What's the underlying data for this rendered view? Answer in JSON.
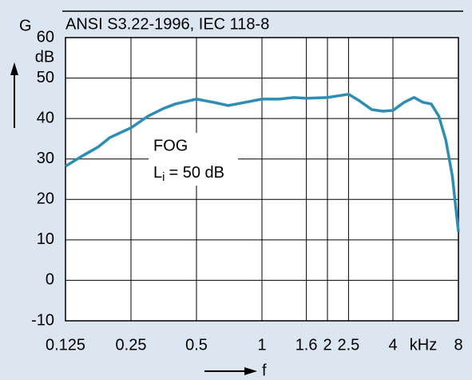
{
  "chart_data": {
    "type": "line",
    "title": "ANSI S3.22-1996, IEC 118-8",
    "y_label": "G",
    "y_unit": "dB",
    "x_label": "f",
    "x_unit": "kHz",
    "annotation": [
      "FOG",
      "L",
      "i",
      "= 50 dB"
    ],
    "xscale": "log",
    "grid": true,
    "xlim": [
      0.125,
      8
    ],
    "xticks": [
      0.125,
      0.25,
      0.5,
      1,
      1.6,
      2,
      2.5,
      4,
      8
    ],
    "ylim": [
      -10,
      60
    ],
    "yticks": [
      -10,
      0,
      10,
      20,
      30,
      40,
      50,
      60
    ],
    "x": [
      0.125,
      0.15,
      0.177,
      0.2,
      0.25,
      0.3,
      0.35,
      0.4,
      0.5,
      0.6,
      0.7,
      0.8,
      1,
      1.2,
      1.4,
      1.6,
      2,
      2.5,
      2.8,
      3.2,
      3.6,
      4,
      4.5,
      5,
      5.5,
      6,
      6.5,
      7,
      7.5,
      8
    ],
    "series": [
      {
        "color": "#2e8db5",
        "values": [
          28.2,
          30.8,
          33,
          35.3,
          37.7,
          40.6,
          42.4,
          43.6,
          44.8,
          44,
          43.2,
          43.8,
          44.8,
          44.8,
          45.2,
          45,
          45.2,
          46,
          44.4,
          42.2,
          41.8,
          42,
          44,
          45.2,
          44,
          43.6,
          40.6,
          34.7,
          25.8,
          12
        ]
      }
    ]
  }
}
